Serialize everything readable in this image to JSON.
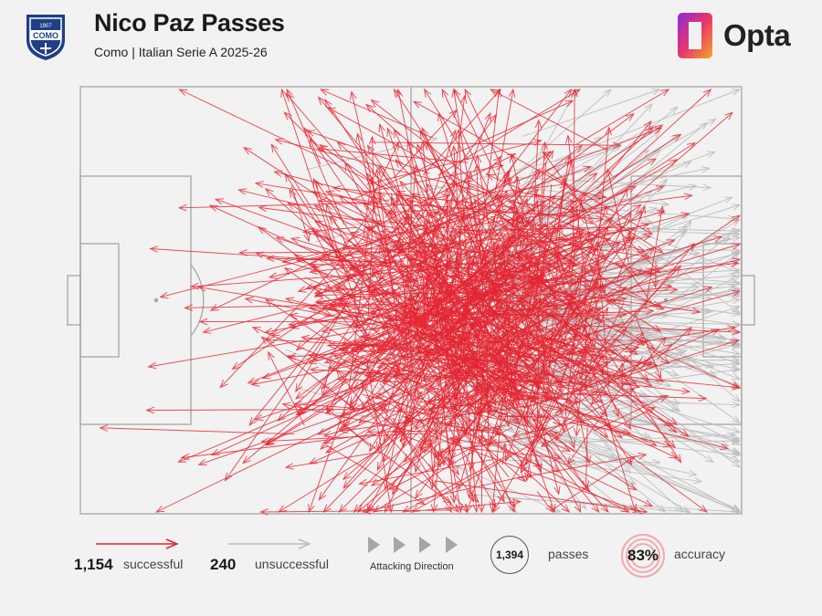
{
  "header": {
    "title": "Nico Paz Passes",
    "subtitle": "Como | Italian Serie A 2025-26",
    "crest_text_top": "1907",
    "crest_text": "COMO",
    "brand": "Opta"
  },
  "colors": {
    "successful": "#e52531",
    "unsuccessful": "#bcbcbc",
    "pitch_lines": "#a6a6a6",
    "background": "#f2f2f2",
    "accuracy_ring": "#f3a9ae"
  },
  "legend": {
    "successful_count": "1,154",
    "successful_label": "successful",
    "unsuccessful_count": "240",
    "unsuccessful_label": "unsuccessful",
    "direction_label": "Attacking Direction",
    "total_passes": "1,394",
    "passes_label": "passes",
    "accuracy_value": "83%",
    "accuracy_label": "accuracy"
  },
  "chart_data": {
    "type": "pass-map",
    "pitch": "full pitch, attacking left to right",
    "series": [
      {
        "name": "successful",
        "count": 1154
      },
      {
        "name": "unsuccessful",
        "count": 240
      }
    ],
    "total": 1394,
    "accuracy_pct": 83
  }
}
